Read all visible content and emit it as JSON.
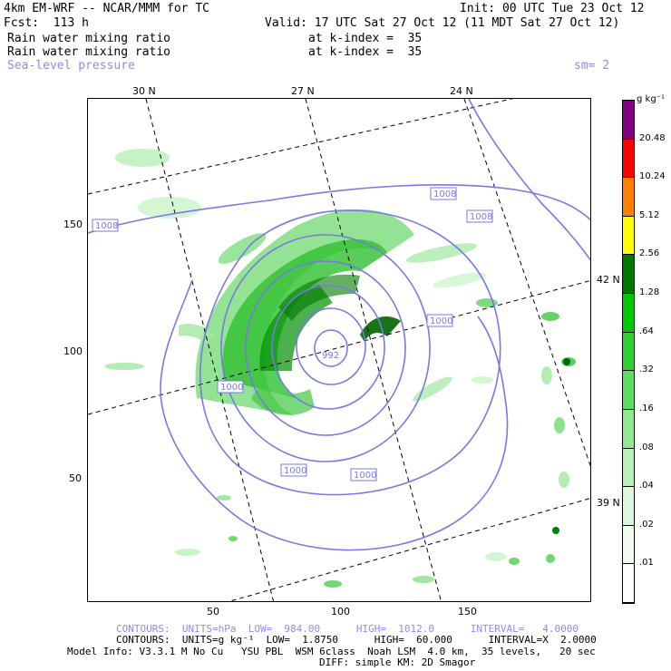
{
  "header": {
    "title": "4km EM-WRF -- NCAR/MMM for TC",
    "init": "Init: 00 UTC Tue 23 Oct 12",
    "fcst": "Fcst:  113 h",
    "valid": "Valid: 17 UTC Sat 27 Oct 12 (11 MDT Sat 27 Oct 12)",
    "field1": "Rain water mixing ratio",
    "field1_level": "at k-index =  35",
    "field2": "Rain water mixing ratio",
    "field2_level": "at k-index =  35",
    "field3": "Sea-level pressure",
    "smooth": "sm= 2"
  },
  "top_lat_labels": [
    "30 N",
    "27 N",
    "24 N"
  ],
  "right_lat_labels": [
    "42 N",
    "39 N"
  ],
  "x_ticks": [
    "50",
    "100",
    "150"
  ],
  "y_ticks": [
    "150",
    "100",
    "50"
  ],
  "contour_labels": {
    "isobar_1008": "1008",
    "isobar_1000": "1000",
    "center": "992"
  },
  "colorbar": {
    "units": "g kg⁻¹",
    "labels": [
      "20.48",
      "10.24",
      "5.12",
      "2.56",
      "1.28",
      ".64",
      ".32",
      ".16",
      ".08",
      ".04",
      ".02",
      ".01"
    ],
    "colors": [
      "#800080",
      "#ff0000",
      "#ff8000",
      "#ffff00",
      "#007800",
      "#00c800",
      "#30d030",
      "#60dc60",
      "#90e890",
      "#b8f0b8",
      "#dcf8dc",
      "#f0fcf0",
      "#ffffff"
    ]
  },
  "footer": {
    "contours_slp": "CONTOURS:  UNITS=hPa  LOW=  984.00      HIGH=  1012.0      INTERVAL=   4.0000",
    "contours_rain": "CONTOURS:  UNITS=g kg⁻¹  LOW=  1.8750      HIGH=  60.000      INTERVAL=X  2.0000",
    "model_info": "Model Info: V3.3.1 M No Cu   YSU PBL  WSM 6class  Noah LSM  4.0 km,  35 levels,   20 sec",
    "diff": "DIFF: simple KM: 2D Smagor"
  },
  "colors": {
    "contour": "#7878e6",
    "grid": "#000000"
  }
}
